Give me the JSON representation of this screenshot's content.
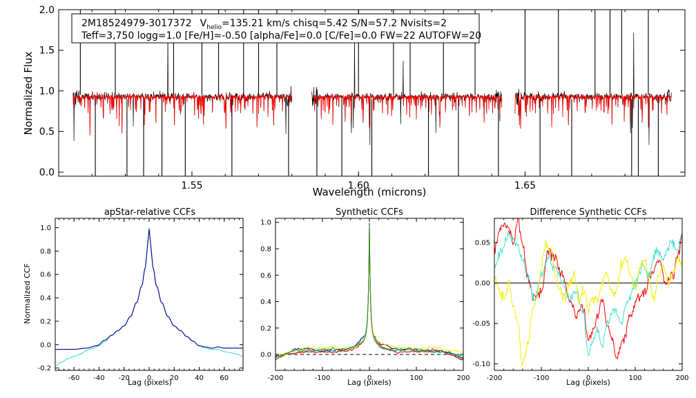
{
  "figure": {
    "info_line1_object": "2M18524979-3017372",
    "info_line1_v": "V",
    "info_line1_sub": "helio",
    "info_line1_rest": "=135.21 km/s  chisq=5.42  S/N=57.2  Nvisits=2",
    "info_line2": "Teff=3,750 logg=1.0 [Fe/H]=-0.50 [alpha/Fe]=0.0 [C/Fe]=0.0 FW=22 AUTOFW=20"
  },
  "colors": {
    "observed": "#000000",
    "model": "#ff0000",
    "frame": "#000000",
    "ccf_blue": "#00008b",
    "ccf_teal": "#40e0d0",
    "ccf_red": "#ff0000",
    "ccf_yellow": "#f0f000",
    "ccf_green": "#228b22"
  },
  "chart_data": [
    {
      "id": "spectrum",
      "type": "line",
      "title": "",
      "xlabel": "Wavelength (microns)",
      "ylabel": "Normalized Flux",
      "xlim": [
        1.51,
        1.698
      ],
      "ylim": [
        -0.05,
        2.0
      ],
      "xticks": [
        1.55,
        1.6,
        1.65
      ],
      "xtick_labels": [
        "1.55",
        "1.60",
        "1.65"
      ],
      "yticks": [
        0.0,
        0.5,
        1.0,
        1.5,
        2.0
      ],
      "ytick_labels": [
        "0.0",
        "0.5",
        "1.0",
        "1.5",
        "2.0"
      ],
      "chips": [
        [
          1.5143,
          1.58
        ],
        [
          1.586,
          1.643
        ],
        [
          1.647,
          1.694
        ]
      ],
      "continuum": 0.93,
      "series": [
        {
          "name": "observed spectrum",
          "color": "#000000"
        },
        {
          "name": "best-fit model",
          "color": "#ff0000"
        }
      ],
      "strong_lines": [
        1.5165,
        1.521,
        1.527,
        1.5305,
        1.5355,
        1.541,
        1.5445,
        1.548,
        1.553,
        1.558,
        1.562,
        1.5655,
        1.57,
        1.5755,
        1.579,
        1.5875,
        1.595,
        1.6,
        1.604,
        1.6105,
        1.6155,
        1.621,
        1.6255,
        1.63,
        1.635,
        1.642,
        1.65,
        1.6545,
        1.66,
        1.664,
        1.671,
        1.6755,
        1.679,
        1.682,
        1.684,
        1.687,
        1.69
      ]
    },
    {
      "id": "ccf_apstar",
      "type": "line",
      "title": "apStar-relative CCFs",
      "xlabel": "Lag (pixels)",
      "ylabel": "Normalized CCF",
      "xlim": [
        -75,
        75
      ],
      "ylim": [
        -0.22,
        1.08
      ],
      "xticks": [
        -60,
        -40,
        -20,
        0,
        20,
        40,
        60
      ],
      "xtick_labels": [
        "-60",
        "-40",
        "-20",
        "0",
        "20",
        "40",
        "60"
      ],
      "yticks": [
        -0.2,
        0.0,
        0.2,
        0.4,
        0.6,
        0.8,
        1.0
      ],
      "ytick_labels": [
        "-0.2",
        "0.0",
        "0.2",
        "0.4",
        "0.6",
        "0.8",
        "1.0"
      ],
      "series": [
        {
          "name": "visit 1",
          "color": "#00008b",
          "x": [
            -75,
            -60,
            -50,
            -42,
            -35,
            -30,
            -25,
            -20,
            -15,
            -10,
            -6,
            -3,
            0,
            3,
            6,
            10,
            15,
            20,
            25,
            30,
            35,
            40,
            45,
            50,
            55,
            60,
            65,
            70,
            75
          ],
          "y": [
            -0.04,
            -0.04,
            -0.03,
            -0.01,
            0.04,
            0.08,
            0.12,
            0.16,
            0.24,
            0.36,
            0.5,
            0.66,
            0.99,
            0.66,
            0.5,
            0.36,
            0.24,
            0.16,
            0.12,
            0.07,
            0.03,
            -0.01,
            -0.02,
            -0.03,
            -0.02,
            -0.03,
            -0.03,
            -0.03,
            -0.03
          ]
        },
        {
          "name": "visit 2",
          "color": "#40e0d0",
          "x": [
            -75,
            -70,
            -65,
            -60,
            -55,
            -50,
            -45,
            -40,
            -35,
            -30,
            -25,
            -20,
            -15,
            -10,
            -6,
            -3,
            0,
            3,
            6,
            10,
            15,
            20,
            25,
            30,
            35,
            40,
            45,
            50,
            55,
            60,
            65,
            70,
            75
          ],
          "y": [
            -0.18,
            -0.15,
            -0.12,
            -0.1,
            -0.08,
            -0.05,
            -0.03,
            -0.01,
            0.03,
            0.08,
            0.12,
            0.16,
            0.24,
            0.36,
            0.5,
            0.66,
            0.99,
            0.66,
            0.5,
            0.36,
            0.24,
            0.16,
            0.12,
            0.07,
            0.03,
            -0.01,
            -0.03,
            -0.04,
            -0.04,
            -0.06,
            -0.07,
            -0.08,
            -0.1
          ]
        }
      ]
    },
    {
      "id": "ccf_synthetic",
      "type": "line",
      "title": "Synthetic CCFs",
      "xlabel": "Lag (pixels)",
      "ylabel": "",
      "xlim": [
        -200,
        200
      ],
      "ylim": [
        -0.12,
        1.03
      ],
      "xticks": [
        -200,
        -100,
        0,
        100,
        200
      ],
      "xtick_labels": [
        "-200",
        "-100",
        "0",
        "100",
        "200"
      ],
      "yticks": [
        0.0,
        0.2,
        0.4,
        0.6,
        0.8,
        1.0
      ],
      "ytick_labels": [
        "0.0",
        "0.2",
        "0.4",
        "0.6",
        "0.8",
        "1.0"
      ],
      "zero_line": "dashed",
      "series": [
        {
          "name": "visit 1",
          "color": "#00008b",
          "peak": 1.0,
          "base": 0.01
        },
        {
          "name": "visit 2",
          "color": "#40e0d0",
          "peak": 0.97,
          "base": 0.0
        },
        {
          "name": "model a",
          "color": "#ff0000",
          "peak": 0.98,
          "base": -0.01
        },
        {
          "name": "model b",
          "color": "#f0f000",
          "peak": 0.96,
          "base": 0.02
        },
        {
          "name": "model c",
          "color": "#228b22",
          "peak": 0.99,
          "base": 0.0
        }
      ]
    },
    {
      "id": "ccf_difference",
      "type": "line",
      "title": "Difference Synthetic CCFs",
      "xlabel": "Lag (pixels)",
      "ylabel": "",
      "xlim": [
        -200,
        200
      ],
      "ylim": [
        -0.108,
        0.08
      ],
      "xticks": [
        -200,
        -100,
        0,
        100,
        200
      ],
      "xtick_labels": [
        "-200",
        "-100",
        "0",
        "100",
        "200"
      ],
      "yticks": [
        -0.1,
        -0.05,
        0.0,
        0.05
      ],
      "ytick_labels": [
        "-0.10",
        "-0.05",
        "0.00",
        "0.05"
      ],
      "zero_line": "solid",
      "series": [
        {
          "name": "red",
          "color": "#ff0000",
          "x": [
            -200,
            -185,
            -170,
            -160,
            -150,
            -140,
            -130,
            -115,
            -100,
            -85,
            -70,
            -55,
            -40,
            -25,
            -10,
            0,
            10,
            20,
            30,
            40,
            50,
            60,
            75,
            90,
            105,
            120,
            135,
            150,
            165,
            180,
            190,
            200
          ],
          "y": [
            0.04,
            0.07,
            0.07,
            0.05,
            0.08,
            0.05,
            0.01,
            -0.02,
            -0.01,
            0.04,
            0.03,
            0.01,
            -0.02,
            -0.04,
            -0.03,
            -0.07,
            -0.06,
            -0.04,
            -0.02,
            -0.05,
            -0.07,
            -0.09,
            -0.07,
            -0.04,
            -0.02,
            -0.01,
            0.01,
            0.03,
            0.0,
            0.01,
            0.03,
            0.06
          ]
        },
        {
          "name": "teal",
          "color": "#40e0d0",
          "x": [
            -200,
            -185,
            -170,
            -155,
            -140,
            -130,
            -115,
            -100,
            -85,
            -70,
            -55,
            -40,
            -25,
            -10,
            0,
            10,
            20,
            30,
            40,
            55,
            70,
            85,
            100,
            115,
            130,
            145,
            160,
            175,
            190,
            200
          ],
          "y": [
            0.02,
            0.04,
            0.06,
            0.05,
            0.03,
            0.01,
            -0.02,
            0.01,
            0.03,
            0.02,
            0.0,
            -0.02,
            -0.01,
            -0.04,
            -0.09,
            -0.07,
            -0.06,
            -0.08,
            -0.05,
            -0.03,
            -0.05,
            -0.02,
            0.0,
            0.02,
            0.01,
            0.04,
            0.03,
            0.05,
            0.04,
            0.06
          ]
        },
        {
          "name": "yellow",
          "color": "#f0f000",
          "x": [
            -200,
            -190,
            -180,
            -170,
            -160,
            -150,
            -140,
            -130,
            -120,
            -110,
            -100,
            -90,
            -80,
            -70,
            -60,
            -50,
            -40,
            -30,
            -20,
            -10,
            0,
            10,
            20,
            30,
            40,
            50,
            60,
            70,
            80,
            90,
            100,
            110,
            120,
            130,
            140,
            150,
            160,
            170,
            180,
            190,
            200
          ],
          "y": [
            0.01,
            -0.01,
            -0.02,
            0.0,
            -0.03,
            -0.05,
            -0.1,
            -0.08,
            -0.04,
            -0.02,
            0.02,
            0.05,
            0.04,
            0.01,
            -0.01,
            -0.02,
            0.0,
            0.01,
            -0.02,
            -0.01,
            -0.03,
            -0.02,
            -0.02,
            0.0,
            0.01,
            -0.01,
            -0.01,
            0.02,
            0.03,
            0.01,
            -0.01,
            0.02,
            0.03,
            0.0,
            -0.02,
            0.01,
            0.02,
            0.0,
            0.01,
            0.03,
            0.02
          ]
        }
      ]
    }
  ]
}
